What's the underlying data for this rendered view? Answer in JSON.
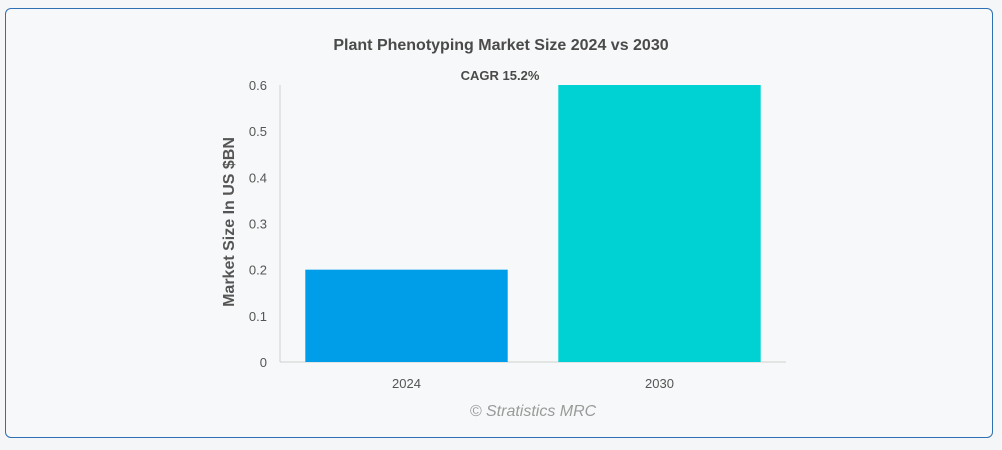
{
  "chart_data": {
    "type": "bar",
    "title": "Plant Phenotyping Market Size 2024 vs 2030",
    "ylabel": "Market Size In US $BN",
    "xlabel": "",
    "categories": [
      "2024",
      "2030"
    ],
    "values": [
      0.2,
      0.6
    ],
    "bar_colors": [
      "#009ee8",
      "#00d2d3"
    ],
    "ylim": [
      0,
      0.6
    ],
    "yticks": [
      0,
      0.1,
      0.2,
      0.3,
      0.4,
      0.5,
      0.6
    ],
    "ytick_labels": [
      "0",
      "0.1",
      "0.2",
      "0.3",
      "0.4",
      "0.5",
      "0.6"
    ],
    "grid": false,
    "annotation": "CAGR 15.2%",
    "watermark": "© Stratistics MRC"
  },
  "colors": {
    "frame_border": "#2f6fb3",
    "axis": "#cfcfcf"
  }
}
